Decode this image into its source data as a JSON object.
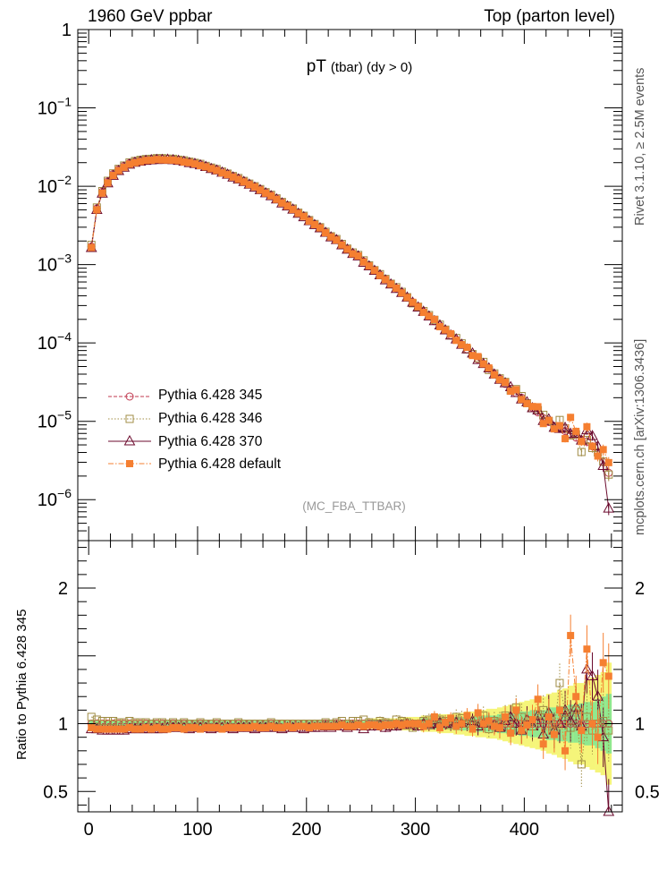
{
  "header": {
    "left": "1960 GeV ppbar",
    "right": "Top (parton level)"
  },
  "side_labels": {
    "top": "Rivet 3.1.10, ≥ 2.5M events",
    "bottom": "mcplots.cern.ch [arXiv:1306.3436]"
  },
  "plot": {
    "title_main": "pT",
    "title_sub": "(tbar) (dy > 0)",
    "analysis": "(MC_FBA_TTBAR)",
    "ratio_ylabel": "Ratio to Pythia 6.428 345"
  },
  "colors": {
    "p345": "#c0394f",
    "p346": "#a08c45",
    "p370": "#6b0a2d",
    "default": "#f57f31",
    "band_inner": "#8fe88f",
    "band_outer": "#f5f57a"
  },
  "legend": [
    {
      "label": "Pythia 6.428 345",
      "color": "#c0394f",
      "marker": "open-circle",
      "line": "dashed"
    },
    {
      "label": "Pythia 6.428 346",
      "color": "#a08c45",
      "marker": "open-square",
      "line": "dotted"
    },
    {
      "label": "Pythia 6.428 370",
      "color": "#6b0a2d",
      "marker": "open-triangle",
      "line": "solid"
    },
    {
      "label": "Pythia 6.428 default",
      "color": "#f57f31",
      "marker": "filled-square",
      "line": "dash-dot"
    }
  ],
  "chart_data": [
    {
      "type": "line",
      "panel": "main",
      "title": "pT (tbar) (dy > 0)",
      "xlabel": "",
      "ylabel": "",
      "xlim": [
        -10,
        490
      ],
      "ylim": [
        3e-07,
        1
      ],
      "yscale": "log",
      "y_ticks": [
        {
          "value": 1,
          "label": "1"
        },
        {
          "value": 0.1,
          "label": "10^-1"
        },
        {
          "value": 0.01,
          "label": "10^-2"
        },
        {
          "value": 0.001,
          "label": "10^-3"
        },
        {
          "value": 0.0001,
          "label": "10^-4"
        },
        {
          "value": 1e-05,
          "label": "10^-5"
        },
        {
          "value": 1e-06,
          "label": "10^-6"
        }
      ],
      "bin_width": 5,
      "bins_start": 0,
      "reference_series": "Pythia 6.428 345",
      "reference_values": [
        0.0017,
        0.0052,
        0.0085,
        0.0115,
        0.0143,
        0.0165,
        0.0182,
        0.0197,
        0.0208,
        0.0215,
        0.022,
        0.0224,
        0.0226,
        0.0226,
        0.0225,
        0.0222,
        0.0218,
        0.0212,
        0.0206,
        0.0199,
        0.0191,
        0.0182,
        0.0173,
        0.0164,
        0.0154,
        0.0145,
        0.0135,
        0.0126,
        0.0117,
        0.0108,
        0.01,
        0.0092,
        0.0084,
        0.0077,
        0.007,
        0.0063,
        0.0057,
        0.0052,
        0.0046,
        0.0042,
        0.0037,
        0.0033,
        0.003,
        0.0026,
        0.0023,
        0.0021,
        0.0018,
        0.0016,
        0.0014,
        0.0013,
        0.0011,
        0.00097,
        0.00085,
        0.00074,
        0.00065,
        0.00057,
        0.0005,
        0.00044,
        0.00038,
        0.00033,
        0.00029,
        0.00025,
        0.00022,
        0.00019,
        0.000166,
        0.000145,
        0.000126,
        0.00011,
        9.5e-05,
        8.3e-05,
        7.2e-05,
        6.2e-05,
        5.4e-05,
        4.7e-05,
        4e-05,
        3.5e-05,
        3e-05,
        2.6e-05,
        2.3e-05,
        2e-05,
        1.7e-05,
        1.5e-05,
        1.3e-05,
        1.1e-05,
        9.8e-06,
        8.7e-06,
        8e-06,
        7.5e-06,
        6.8e-06,
        6.2e-06,
        5.8e-06,
        5.5e-06,
        4.8e-06,
        4e-06,
        3e-06,
        2.2e-06
      ],
      "series_note": "Other series = reference_values × ratio values of the ratio panel"
    },
    {
      "type": "line",
      "panel": "ratio",
      "xlabel": "",
      "ylabel": "Ratio to Pythia 6.428 345",
      "xlim": [
        -10,
        490
      ],
      "ylim": [
        0.35,
        2.35
      ],
      "x_ticks": [
        0,
        100,
        200,
        300,
        400
      ],
      "y_ticks": [
        0.5,
        1,
        2
      ],
      "bin_width": 5,
      "bins_start": 0,
      "series": [
        {
          "name": "Pythia 6.428 346",
          "values": [
            1.05,
            1.03,
            1.02,
            1.02,
            1.02,
            1.01,
            1.01,
            1.02,
            1.01,
            1.01,
            1.01,
            1.0,
            1.01,
            1.01,
            1.0,
            1.01,
            1.0,
            1.01,
            1.0,
            1.0,
            1.01,
            1.0,
            1.0,
            1.01,
            1.0,
            1.0,
            1.0,
            1.01,
            1.0,
            1.0,
            1.0,
            1.0,
            1.0,
            1.01,
            1.0,
            1.0,
            1.0,
            1.0,
            1.0,
            1.0,
            1.0,
            1.0,
            1.0,
            1.01,
            1.0,
            1.01,
            1.02,
            1.0,
            1.02,
            1.02,
            1.03,
            1.01,
            1.0,
            1.02,
            1.01,
            1.0,
            1.03,
            1.02,
            1.01,
            0.97,
            1.0,
            1.02,
            1.03,
            1.04,
            1.03,
            1.02,
            0.99,
            1.05,
            1.04,
            1.0,
            1.0,
            1.03,
            1.06,
            0.96,
            1.02,
            1.01,
            1.06,
            0.95,
            1.12,
            1.05,
            1.0,
            0.98,
            1.07,
            1.1,
            1.03,
            0.95,
            1.3,
            1.08,
            0.97,
            1.1,
            0.7,
            1.05,
            0.95,
            1.0,
            1.02,
            0.95
          ]
        },
        {
          "name": "Pythia 6.428 370",
          "values": [
            0.96,
            0.96,
            0.95,
            0.95,
            0.95,
            0.95,
            0.95,
            0.96,
            0.96,
            0.96,
            0.96,
            0.96,
            0.96,
            0.96,
            0.97,
            0.97,
            0.97,
            0.97,
            0.96,
            0.97,
            0.97,
            0.97,
            0.96,
            0.97,
            0.97,
            0.97,
            0.96,
            0.97,
            0.97,
            0.97,
            0.96,
            0.97,
            0.97,
            0.97,
            0.97,
            0.96,
            0.97,
            0.97,
            0.97,
            0.96,
            0.97,
            0.97,
            0.97,
            0.98,
            0.97,
            0.98,
            0.98,
            0.97,
            0.98,
            0.98,
            0.96,
            0.98,
            0.98,
            0.99,
            0.97,
            0.98,
            0.98,
            0.99,
            1.0,
            0.99,
            0.98,
            1.0,
            0.99,
            1.0,
            1.01,
            1.0,
            0.99,
            1.01,
            1.0,
            1.0,
            1.02,
            0.98,
            1.0,
            1.01,
            0.99,
            0.97,
            1.02,
            1.05,
            1.0,
            0.95,
            1.03,
            0.98,
            1.06,
            0.92,
            1.08,
            0.95,
            1.0,
            1.1,
            1.02,
            1.12,
            0.98,
            1.4,
            1.35,
            1.2,
            0.9,
            0.35
          ]
        },
        {
          "name": "Pythia 6.428 default",
          "values": [
            0.97,
            0.96,
            0.96,
            0.96,
            0.96,
            0.96,
            0.96,
            0.97,
            0.96,
            0.96,
            0.97,
            0.96,
            0.97,
            0.96,
            0.96,
            0.97,
            0.97,
            0.96,
            0.97,
            0.97,
            0.96,
            0.97,
            0.97,
            0.97,
            0.96,
            0.97,
            0.97,
            0.97,
            0.97,
            0.97,
            0.98,
            0.97,
            0.97,
            0.98,
            0.97,
            0.97,
            0.98,
            0.97,
            0.98,
            0.98,
            0.97,
            0.98,
            0.98,
            0.98,
            0.98,
            0.98,
            0.99,
            0.98,
            0.98,
            0.99,
            0.98,
            0.99,
            0.99,
            0.98,
            0.99,
            0.99,
            1.0,
            0.99,
            1.0,
            1.0,
            1.0,
            0.98,
            1.0,
            1.05,
            0.97,
            1.01,
            1.04,
            0.98,
            1.0,
            1.06,
            0.96,
            1.08,
            1.0,
            1.02,
            0.98,
            0.97,
            1.05,
            0.93,
            1.1,
            0.95,
            0.99,
            1.03,
            1.18,
            0.85,
            1.05,
            0.92,
            1.1,
            0.8,
            1.65,
            1.2,
            0.95,
            1.55,
            1.0,
            0.9,
            1.45,
            1.35
          ]
        }
      ],
      "band_inner_halfwidth": [
        0.02,
        0.02,
        0.02,
        0.02,
        0.02,
        0.02,
        0.02,
        0.02,
        0.02,
        0.02,
        0.02,
        0.02,
        0.02,
        0.02,
        0.02,
        0.02,
        0.02,
        0.02,
        0.02,
        0.02,
        0.02,
        0.02,
        0.02,
        0.02,
        0.02,
        0.02,
        0.02,
        0.02,
        0.02,
        0.02,
        0.02,
        0.02,
        0.02,
        0.02,
        0.02,
        0.02,
        0.02,
        0.02,
        0.02,
        0.02,
        0.02,
        0.02,
        0.02,
        0.02,
        0.02,
        0.02,
        0.02,
        0.02,
        0.02,
        0.02,
        0.02,
        0.03,
        0.03,
        0.03,
        0.03,
        0.03,
        0.03,
        0.03,
        0.03,
        0.03,
        0.03,
        0.04,
        0.04,
        0.04,
        0.04,
        0.04,
        0.04,
        0.05,
        0.05,
        0.05,
        0.05,
        0.06,
        0.06,
        0.06,
        0.06,
        0.07,
        0.07,
        0.08,
        0.08,
        0.09,
        0.09,
        0.1,
        0.1,
        0.1,
        0.12,
        0.12,
        0.13,
        0.13,
        0.14,
        0.14,
        0.15,
        0.16,
        0.16,
        0.18,
        0.2,
        0.22
      ],
      "band_outer_halfwidth": [
        0.03,
        0.03,
        0.03,
        0.03,
        0.03,
        0.03,
        0.03,
        0.03,
        0.03,
        0.03,
        0.03,
        0.03,
        0.03,
        0.03,
        0.03,
        0.03,
        0.03,
        0.03,
        0.03,
        0.03,
        0.03,
        0.03,
        0.03,
        0.03,
        0.03,
        0.03,
        0.03,
        0.03,
        0.03,
        0.03,
        0.03,
        0.03,
        0.03,
        0.03,
        0.03,
        0.03,
        0.03,
        0.03,
        0.03,
        0.03,
        0.03,
        0.03,
        0.03,
        0.03,
        0.03,
        0.03,
        0.03,
        0.03,
        0.03,
        0.03,
        0.03,
        0.04,
        0.04,
        0.04,
        0.04,
        0.04,
        0.04,
        0.05,
        0.05,
        0.05,
        0.05,
        0.06,
        0.06,
        0.06,
        0.07,
        0.07,
        0.07,
        0.08,
        0.08,
        0.09,
        0.09,
        0.1,
        0.1,
        0.11,
        0.11,
        0.12,
        0.13,
        0.14,
        0.15,
        0.16,
        0.17,
        0.18,
        0.19,
        0.2,
        0.22,
        0.23,
        0.25,
        0.26,
        0.28,
        0.3,
        0.3,
        0.32,
        0.34,
        0.36,
        0.38,
        0.45
      ]
    }
  ]
}
